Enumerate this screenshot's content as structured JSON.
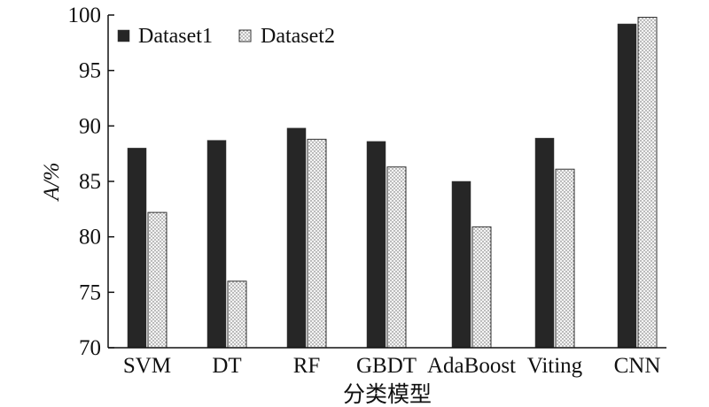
{
  "chart_data": {
    "type": "bar",
    "categories": [
      "SVM",
      "DT",
      "RF",
      "GBDT",
      "AdaBoost",
      "Viting",
      "CNN"
    ],
    "series": [
      {
        "name": "Dataset1",
        "values": [
          88.0,
          88.7,
          89.8,
          88.6,
          85.0,
          88.9,
          99.2
        ]
      },
      {
        "name": "Dataset2",
        "values": [
          82.2,
          76.0,
          88.8,
          86.3,
          80.9,
          86.1,
          99.8
        ]
      }
    ],
    "xlabel": "分类模型",
    "ylabel": "A/%",
    "ylim": [
      70,
      100
    ],
    "yticks": [
      70,
      75,
      80,
      85,
      90,
      95,
      100
    ],
    "legend": "top-left",
    "grid": false,
    "colors": {
      "Dataset1": "#262626",
      "Dataset2": "#f2f2f2"
    }
  }
}
